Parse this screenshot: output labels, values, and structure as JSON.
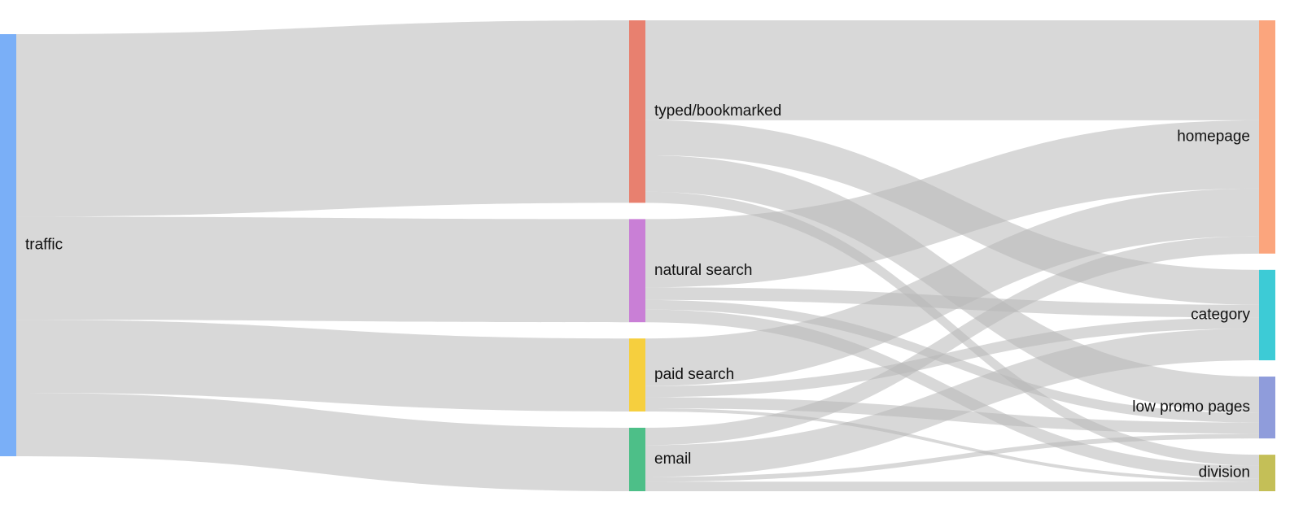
{
  "chart_data": {
    "type": "sankey",
    "nodes": [
      {
        "id": "traffic",
        "label": "traffic",
        "color": "#7aaff7",
        "column": 0
      },
      {
        "id": "typed",
        "label": "typed/bookmarked",
        "color": "#e8806f",
        "column": 1
      },
      {
        "id": "natural",
        "label": "natural search",
        "color": "#c97fd6",
        "column": 1
      },
      {
        "id": "paid",
        "label": "paid search",
        "color": "#f6cf3e",
        "column": 1
      },
      {
        "id": "email",
        "label": "email",
        "color": "#4dbf88",
        "column": 1
      },
      {
        "id": "homepage",
        "label": "homepage",
        "color": "#fba57d",
        "column": 2
      },
      {
        "id": "category",
        "label": "category",
        "color": "#3dcbd6",
        "column": 2
      },
      {
        "id": "lowpromo",
        "label": "low promo pages",
        "color": "#8f9cdb",
        "column": 2
      },
      {
        "id": "division",
        "label": "division",
        "color": "#c4bf57",
        "column": 2
      }
    ],
    "links": [
      {
        "source": "traffic",
        "target": "typed",
        "value": 1150
      },
      {
        "source": "traffic",
        "target": "natural",
        "value": 650
      },
      {
        "source": "traffic",
        "target": "paid",
        "value": 460
      },
      {
        "source": "traffic",
        "target": "email",
        "value": 400
      },
      {
        "source": "typed",
        "target": "homepage",
        "value": 630
      },
      {
        "source": "typed",
        "target": "category",
        "value": 220
      },
      {
        "source": "typed",
        "target": "lowpromo",
        "value": 230
      },
      {
        "source": "typed",
        "target": "division",
        "value": 70
      },
      {
        "source": "natural",
        "target": "homepage",
        "value": 430
      },
      {
        "source": "natural",
        "target": "category",
        "value": 80
      },
      {
        "source": "natural",
        "target": "lowpromo",
        "value": 60
      },
      {
        "source": "natural",
        "target": "division",
        "value": 80
      },
      {
        "source": "paid",
        "target": "homepage",
        "value": 300
      },
      {
        "source": "paid",
        "target": "category",
        "value": 70
      },
      {
        "source": "paid",
        "target": "lowpromo",
        "value": 70
      },
      {
        "source": "paid",
        "target": "division",
        "value": 20
      },
      {
        "source": "email",
        "target": "homepage",
        "value": 110
      },
      {
        "source": "email",
        "target": "category",
        "value": 200
      },
      {
        "source": "email",
        "target": "lowpromo",
        "value": 30
      },
      {
        "source": "email",
        "target": "division",
        "value": 60
      }
    ]
  }
}
